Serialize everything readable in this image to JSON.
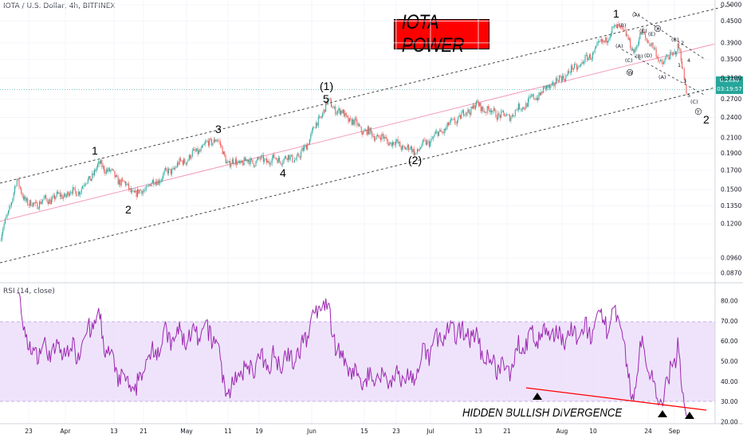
{
  "header": {
    "symbol_label": "IOTA / U.S. Dollar, 4h, BITFINEX",
    "title": "IOTA POWER"
  },
  "rsi": {
    "label": "RSI (14, close)",
    "levels": [
      30,
      70
    ],
    "annotation": "HIDDEN BULLISH DIVERGENCE"
  },
  "price_tags": {
    "last": "0.2880",
    "countdown": "03:19:57"
  },
  "colors": {
    "candle_up": "#26a69a",
    "candle_down": "#ef5350",
    "rsi_line": "#9c27b0",
    "rsi_band": "#ede0fb",
    "midline": "#f48fb1",
    "divergence": "#ff0000",
    "last_tag": "#26a69a"
  },
  "wave_labels": {
    "w1": "1",
    "w2": "2",
    "w3": "3",
    "w4": "4",
    "w5": "5",
    "big1": "(1)",
    "big2": "(2)",
    "top1": "1",
    "end2": "2",
    "sA": "(A)",
    "sB": "(B)",
    "sC": "(C)",
    "sD": "(D)",
    "sE": "(E)",
    "sW": "W",
    "sX": "X",
    "sY": "Y",
    "s1": "1",
    "s2": "2",
    "s3": "3",
    "s4": "4",
    "s5": "5"
  },
  "chart_data": {
    "type": "candlestick",
    "price_axis": {
      "scale": "log",
      "ticks": [
        0.5,
        0.45,
        0.39,
        0.35,
        0.31,
        0.27,
        0.24,
        0.21,
        0.19,
        0.17,
        0.15,
        0.135,
        0.12,
        0.096,
        0.087
      ],
      "tick_labels": [
        "0.5000",
        "0.4500",
        "0.3900",
        "0.3500",
        "0.3100",
        "0.2700",
        "0.2400",
        "0.2100",
        "0.1900",
        "0.1700",
        "0.1500",
        "0.1350",
        "0.1200",
        "0.0960",
        "0.0870"
      ]
    },
    "rsi_axis": {
      "ticks": [
        80,
        70,
        60,
        50,
        40,
        30,
        20
      ],
      "tick_labels": [
        "80.00",
        "70.00",
        "60.00",
        "50.00",
        "40.00",
        "30.00",
        "20.00"
      ]
    },
    "time_axis": {
      "tick_labels": [
        "23",
        "Apr",
        "13",
        "21",
        "May",
        "11",
        "19",
        "Jun",
        "15",
        "23",
        "Jul",
        "13",
        "21",
        "Aug",
        "10",
        "24",
        "Sep"
      ]
    },
    "price_path": [
      {
        "t": "Mar 14",
        "p": 0.092
      },
      {
        "t": "Mar 17",
        "p": 0.12
      },
      {
        "t": "Mar 20",
        "p": 0.158
      },
      {
        "t": "Mar 23",
        "p": 0.135
      },
      {
        "t": "Apr 05",
        "p": 0.15
      },
      {
        "t": "Apr 10",
        "p": 0.177
      },
      {
        "t": "Apr 19",
        "p": 0.145
      },
      {
        "t": "May 09",
        "p": 0.21
      },
      {
        "t": "May 12",
        "p": 0.178
      },
      {
        "t": "May 30",
        "p": 0.185
      },
      {
        "t": "Jun 06",
        "p": 0.265
      },
      {
        "t": "Jun 15",
        "p": 0.22
      },
      {
        "t": "Jun 28",
        "p": 0.192
      },
      {
        "t": "Jul 13",
        "p": 0.26
      },
      {
        "t": "Jul 21",
        "p": 0.24
      },
      {
        "t": "Aug 10",
        "p": 0.35
      },
      {
        "t": "Aug 18",
        "p": 0.44
      },
      {
        "t": "Aug 22",
        "p": 0.37
      },
      {
        "t": "Aug 24",
        "p": 0.42
      },
      {
        "t": "Aug 29",
        "p": 0.34
      },
      {
        "t": "Sep 02",
        "p": 0.38
      },
      {
        "t": "Sep 04",
        "p": 0.288
      }
    ],
    "channel_note": "Rising parallel channel (upper, mid, lower trend lines)",
    "last_price": 0.288
  }
}
